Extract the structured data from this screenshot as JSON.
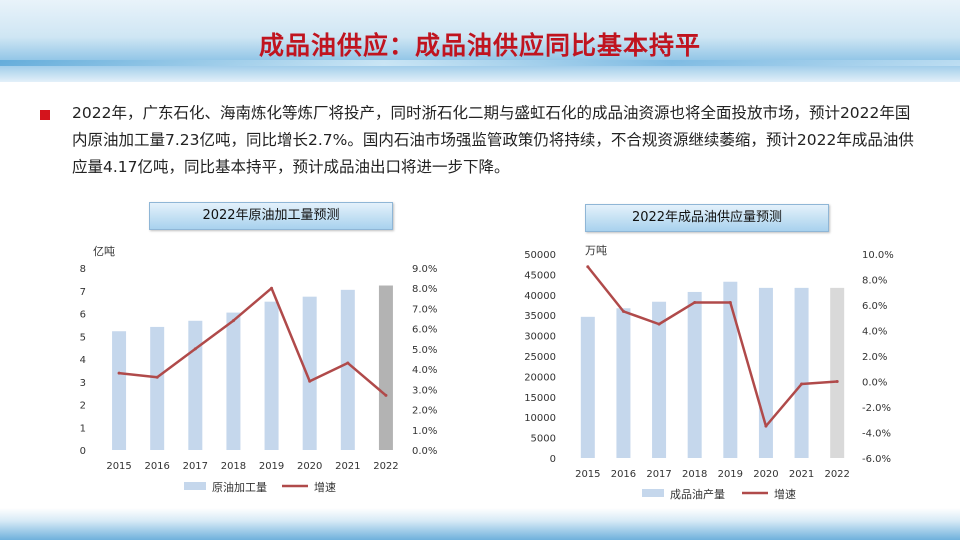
{
  "page": {
    "title": "成品油供应：成品油供应同比基本持平",
    "body_text": "2022年，广东石化、海南炼化等炼厂将投产，同时浙石化二期与盛虹石化的成品油资源也将全面投放市场，预计2022年国内原油加工量7.23亿吨，同比增长2.7%。国内石油市场强监管政策仍将持续，不合规资源继续萎缩，预计2022年成品油供应量4.17亿吨，同比基本持平，预计成品油出口将进一步下降。"
  },
  "colors": {
    "bar": "#c5d7ec",
    "bar_forecast": "#b3b3b3",
    "bar_forecast_2": "#d9d9d9",
    "line": "#b04a4a",
    "title_red": "#c0141f"
  },
  "chart_data": [
    {
      "type": "bar",
      "title": "2022年原油加工量预测",
      "unit_label": "亿吨",
      "categories": [
        "2015",
        "2016",
        "2017",
        "2018",
        "2019",
        "2020",
        "2021",
        "2022"
      ],
      "series": [
        {
          "name": "原油加工量",
          "axis": "left",
          "kind": "bar",
          "values": [
            5.22,
            5.41,
            5.68,
            6.04,
            6.52,
            6.74,
            7.04,
            7.23
          ]
        },
        {
          "name": "增速",
          "axis": "right",
          "kind": "line",
          "values": [
            3.8,
            3.6,
            5.0,
            6.4,
            8.0,
            3.4,
            4.3,
            2.7
          ]
        }
      ],
      "y_left": {
        "min": 0,
        "max": 8,
        "ticks": [
          "0",
          "1",
          "2",
          "3",
          "4",
          "5",
          "6",
          "7",
          "8"
        ]
      },
      "y_right": {
        "min": 0,
        "max": 9,
        "ticks": [
          "0.0%",
          "1.0%",
          "2.0%",
          "3.0%",
          "4.0%",
          "5.0%",
          "6.0%",
          "7.0%",
          "8.0%",
          "9.0%"
        ]
      },
      "legend": [
        {
          "label": "原油加工量",
          "kind": "bar"
        },
        {
          "label": "增速",
          "kind": "line"
        }
      ],
      "legend_position": "bottom"
    },
    {
      "type": "bar",
      "title": "2022年成品油供应量预测",
      "unit_label": "万吨",
      "categories": [
        "2015",
        "2016",
        "2017",
        "2018",
        "2019",
        "2020",
        "2021",
        "2022"
      ],
      "series": [
        {
          "name": "成品油产量",
          "axis": "left",
          "kind": "bar",
          "values": [
            34600,
            36700,
            38300,
            40700,
            43200,
            41700,
            41700,
            41700
          ]
        },
        {
          "name": "增速",
          "axis": "right",
          "kind": "line",
          "values": [
            9.0,
            5.5,
            4.5,
            6.2,
            6.2,
            -3.5,
            -0.2,
            0.0
          ]
        }
      ],
      "y_left": {
        "min": 0,
        "max": 50000,
        "ticks": [
          "0",
          "5000",
          "10000",
          "15000",
          "20000",
          "25000",
          "30000",
          "35000",
          "40000",
          "45000",
          "50000"
        ]
      },
      "y_right": {
        "min": -6,
        "max": 10,
        "ticks": [
          "-6.0%",
          "-4.0%",
          "-2.0%",
          "0.0%",
          "2.0%",
          "4.0%",
          "6.0%",
          "8.0%",
          "10.0%"
        ]
      },
      "legend": [
        {
          "label": "成品油产量",
          "kind": "bar"
        },
        {
          "label": "增速",
          "kind": "line"
        }
      ],
      "legend_position": "bottom"
    }
  ]
}
